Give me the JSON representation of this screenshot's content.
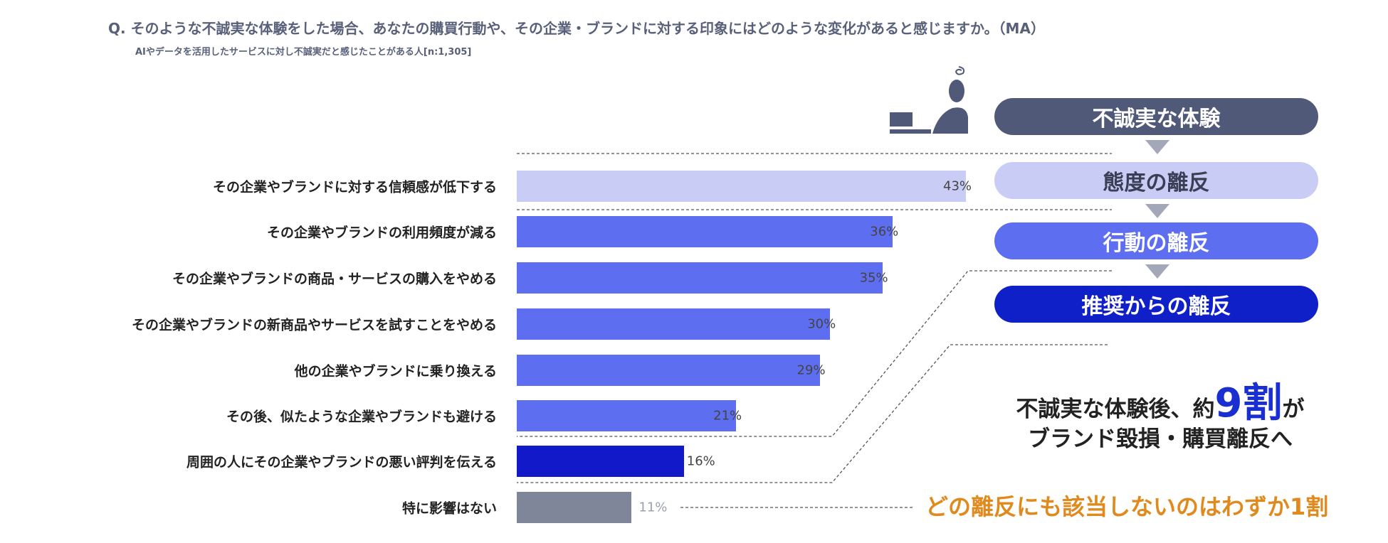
{
  "title": "Q. そのような不誠実な体験をした場合、あなたの購買行動や、その企業・ブランドに対する印象にはどのような変化があると感じますか。（MA）",
  "subtitle": "AIやデータを活用したサービスに対し不誠実だと感じたことがある人[n:1,305]",
  "chart_data": {
    "type": "bar",
    "orientation": "horizontal",
    "categories": [
      "その企業やブランドに対する信頼感が低下する",
      "その企業やブランドの利用頻度が減る",
      "その企業やブランドの商品・サービスの購入をやめる",
      "その企業やブランドの新商品やサービスを試すことをやめる",
      "他の企業やブランドに乗り換える",
      "その後、似たような企業やブランドも避ける",
      "周囲の人にその企業やブランドの悪い評判を伝える",
      "特に影響はない"
    ],
    "values": [
      43,
      36,
      35,
      30,
      29,
      21,
      16,
      11
    ],
    "labels": [
      "43%",
      "36%",
      "35%",
      "30%",
      "29%",
      "21%",
      "16%",
      "11%"
    ],
    "colors": [
      "#c9ccf5",
      "#5e6ef0",
      "#5e6ef0",
      "#5e6ef0",
      "#5e6ef0",
      "#5e6ef0",
      "#1219c8",
      "#7f8699"
    ],
    "unit": "%"
  },
  "flow": {
    "steps": [
      {
        "label": "不誠実な体験",
        "bg": "#505a78",
        "fg": "#ffffff"
      },
      {
        "label": "態度の離反",
        "bg": "#c9ccf5",
        "fg": "#3a3f55"
      },
      {
        "label": "行動の離反",
        "bg": "#5e6ef0",
        "fg": "#ffffff"
      },
      {
        "label": "推奨からの離反",
        "bg": "#1020c8",
        "fg": "#ffffff"
      }
    ],
    "icon": "person-at-laptop-confused-icon"
  },
  "summary": {
    "line1_pre": "不誠実な体験後、約",
    "line1_num": "9割",
    "line1_post": "が",
    "line2": "ブランド毀損・購買離反へ",
    "none_note": "どの離反にも該当しないのはわずか1割"
  }
}
